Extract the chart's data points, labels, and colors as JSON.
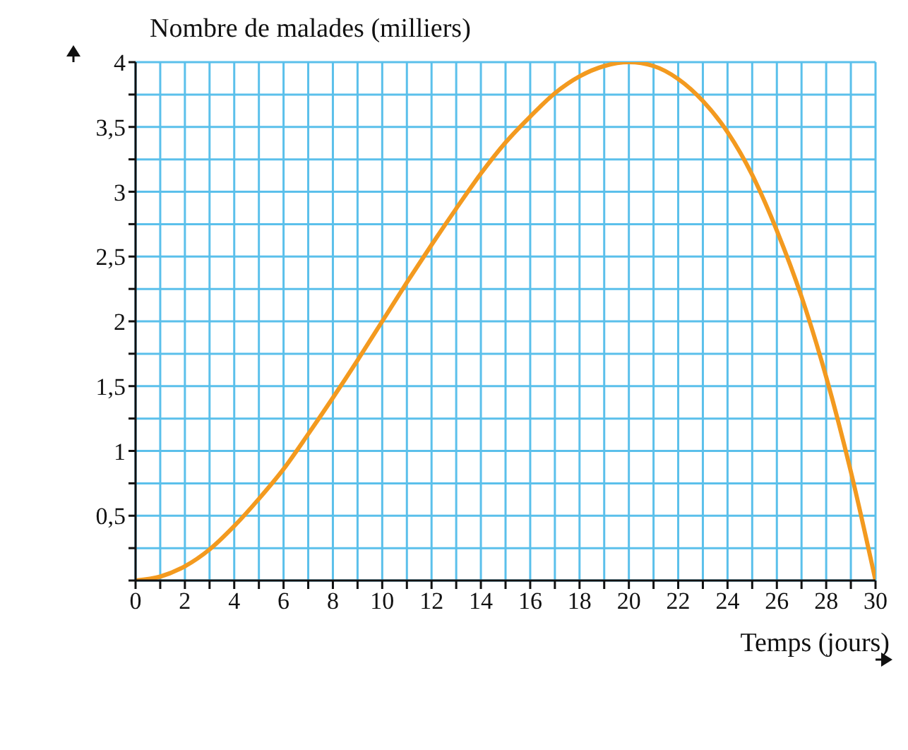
{
  "chart_data": {
    "type": "line",
    "xlabel": "Temps (jours)",
    "ylabel": "Nombre de malades (milliers)",
    "x": [
      0,
      1,
      2,
      3,
      4,
      5,
      6,
      7,
      8,
      9,
      10,
      11,
      12,
      13,
      14,
      15,
      16,
      17,
      18,
      19,
      20,
      21,
      22,
      23,
      24,
      25,
      26,
      27,
      28,
      29,
      30
    ],
    "series": [
      {
        "color": "#f39a1f",
        "values": [
          0,
          0.03,
          0.11,
          0.24,
          0.42,
          0.63,
          0.86,
          1.13,
          1.41,
          1.7,
          2,
          2.3,
          2.59,
          2.87,
          3.14,
          3.38,
          3.58,
          3.76,
          3.89,
          3.97,
          4,
          3.97,
          3.87,
          3.7,
          3.46,
          3.13,
          2.7,
          2.19,
          1.57,
          0.84,
          0
        ]
      }
    ],
    "xlim": [
      0,
      30
    ],
    "ylim": [
      0,
      4
    ],
    "xticks": [
      0,
      {
        "value": 1,
        "label": null
      },
      2,
      {
        "value": 3,
        "label": null
      },
      4,
      {
        "value": 5,
        "label": null
      },
      6,
      {
        "value": 7,
        "label": null
      },
      8,
      {
        "value": 9,
        "label": null
      },
      10,
      {
        "value": 11,
        "label": null
      },
      12,
      {
        "value": 13,
        "label": null
      },
      14,
      {
        "value": 15,
        "label": null
      },
      16,
      {
        "value": 17,
        "label": null
      },
      18,
      {
        "value": 19,
        "label": null
      },
      20,
      {
        "value": 21,
        "label": null
      },
      22,
      {
        "value": 23,
        "label": null
      },
      24,
      {
        "value": 25,
        "label": null
      },
      26,
      {
        "value": 27,
        "label": null
      },
      28,
      {
        "value": 29,
        "label": null
      },
      30
    ],
    "yticks": [
      {
        "value": 0,
        "label": null
      },
      {
        "value": 0.25,
        "label": null
      },
      {
        "value": 0.5,
        "label": "0,5"
      },
      {
        "value": 0.75,
        "label": null
      },
      1,
      {
        "value": 1.25,
        "label": null
      },
      {
        "value": 1.5,
        "label": "1,5"
      },
      {
        "value": 1.75,
        "label": null
      },
      2,
      {
        "value": 2.25,
        "label": null
      },
      {
        "value": 2.5,
        "label": "2,5"
      },
      {
        "value": 2.75,
        "label": null
      },
      3,
      {
        "value": 3.25,
        "label": null
      },
      {
        "value": 3.5,
        "label": "3,5"
      },
      {
        "value": 3.75,
        "label": null
      },
      4
    ],
    "grid": true,
    "marker": "none",
    "line_style": "solid"
  }
}
